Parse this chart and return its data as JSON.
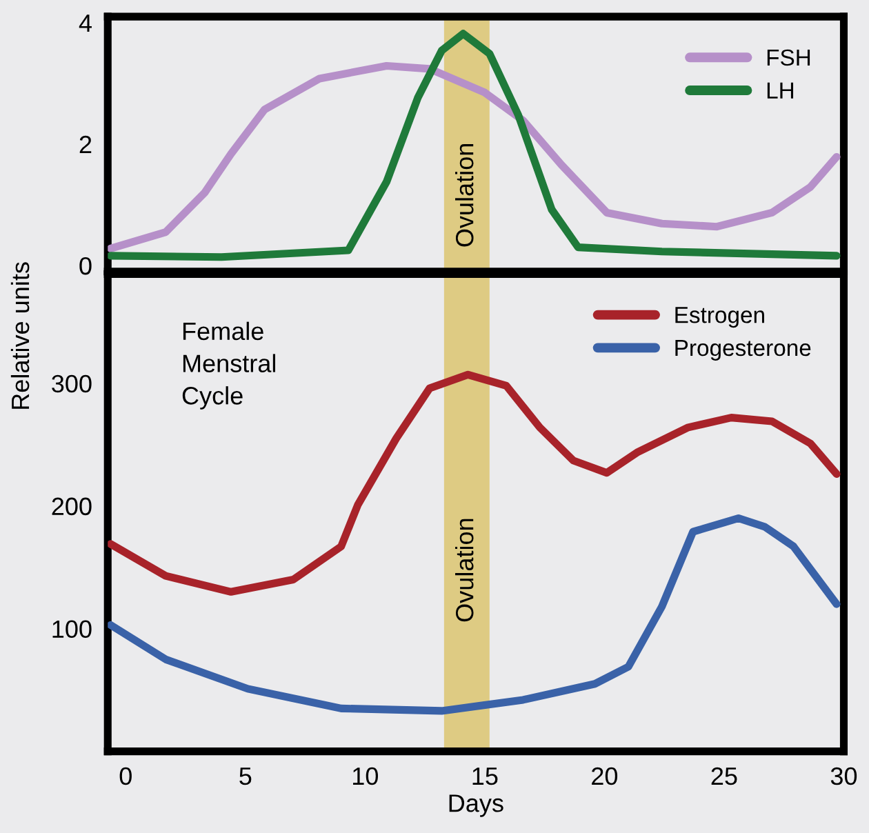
{
  "chart_data": [
    {
      "type": "line",
      "xlim": [
        -0.75,
        30
      ],
      "ylim": [
        -0.1,
        4.1
      ],
      "yticks": [
        0,
        2,
        4
      ],
      "tick_labels": "y",
      "legend": "top right",
      "grid": false,
      "line_style": "solid",
      "bands": [
        {
          "axis": "x",
          "from": 13.3,
          "to": 15.2,
          "label": "Ovulation",
          "color": "#dcc670"
        }
      ],
      "series": [
        {
          "name": "FSH",
          "color": "#b690c9",
          "x": [
            -0.63,
            1.67,
            3.3,
            4.4,
            5.8,
            8.1,
            10.9,
            12.7,
            15.0,
            16.6,
            18.2,
            20.1,
            22.4,
            24.7,
            27.0,
            28.6,
            29.7
          ],
          "values": [
            0.28,
            0.55,
            1.2,
            1.84,
            2.57,
            3.08,
            3.29,
            3.24,
            2.85,
            2.39,
            1.66,
            0.87,
            0.69,
            0.64,
            0.87,
            1.29,
            1.79
          ]
        },
        {
          "name": "LH",
          "color": "#1f7a3a",
          "x": [
            -0.63,
            4.0,
            9.3,
            10.9,
            12.2,
            13.2,
            14.1,
            15.2,
            16.4,
            17.8,
            18.9,
            22.4,
            29.7
          ],
          "values": [
            0.16,
            0.14,
            0.25,
            1.38,
            2.76,
            3.54,
            3.82,
            3.49,
            2.48,
            0.92,
            0.3,
            0.23,
            0.16
          ]
        }
      ]
    },
    {
      "type": "line",
      "xlim": [
        -0.75,
        30
      ],
      "ylim": [
        0,
        389
      ],
      "xticks": [
        0,
        5,
        10,
        15,
        20,
        25,
        30
      ],
      "yticks": [
        100,
        200,
        300
      ],
      "xlabel": "Days",
      "ylabel": "Relative units",
      "legend": "top right",
      "grid": false,
      "line_style": "solid",
      "annotations": [
        "Female\nMenstral\nCycle"
      ],
      "bands": [
        {
          "axis": "x",
          "from": 13.3,
          "to": 15.2,
          "label": "Ovulation",
          "color": "#dcc670"
        }
      ],
      "series": [
        {
          "name": "Estrogen",
          "color": "#a8232a",
          "x": [
            -0.63,
            1.67,
            4.4,
            7.0,
            9.0,
            9.7,
            11.3,
            12.7,
            14.3,
            15.9,
            17.3,
            18.7,
            20.1,
            21.4,
            23.5,
            25.3,
            27.0,
            28.6,
            29.7
          ],
          "values": [
            169,
            143,
            130,
            140,
            167,
            201,
            255,
            296,
            307,
            298,
            264,
            237,
            227,
            244,
            264,
            272,
            269,
            251,
            226
          ]
        },
        {
          "name": "Progesterone",
          "color": "#3a62a8",
          "x": [
            -0.63,
            1.67,
            5.1,
            9.0,
            13.2,
            16.6,
            19.6,
            21.0,
            22.4,
            23.7,
            25.6,
            26.7,
            27.9,
            29.7
          ],
          "values": [
            103,
            75,
            51,
            35,
            33,
            42,
            55,
            69,
            118,
            179,
            190,
            183,
            167,
            120
          ]
        }
      ]
    }
  ]
}
